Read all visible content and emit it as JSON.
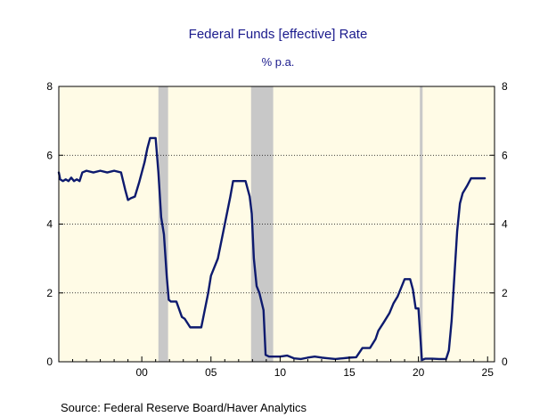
{
  "title": "Federal Funds [effective] Rate",
  "subtitle": "% p.a.",
  "source": "Source:  Federal Reserve Board/Haver Analytics",
  "colors": {
    "plot_background": "#fffbe6",
    "line": "#0d1a6e",
    "recession": "#c8c8c8",
    "title": "#1a1a8c"
  },
  "chart_data": {
    "type": "line",
    "title": "Federal Funds [effective] Rate",
    "subtitle": "% p.a.",
    "xlabel": "",
    "ylabel": "",
    "xlim": [
      1994,
      2025.5
    ],
    "ylim": [
      0,
      8
    ],
    "x_tick_labels": [
      "00",
      "05",
      "10",
      "15",
      "20",
      "25"
    ],
    "x_tick_values": [
      2000,
      2005,
      2010,
      2015,
      2020,
      2025
    ],
    "y_tick_labels": [
      "0",
      "2",
      "4",
      "6",
      "8"
    ],
    "y_tick_values": [
      0,
      2,
      4,
      6,
      8
    ],
    "grid": "horizontal dotted at 2, 4, 6",
    "recessions": [
      [
        2001.2,
        2001.9
      ],
      [
        2007.9,
        2009.5
      ],
      [
        2020.1,
        2020.3
      ]
    ],
    "series": [
      {
        "x": [
          1994.0,
          1994.1,
          1994.3,
          1994.5,
          1994.7,
          1994.9,
          1995.1,
          1995.3,
          1995.5,
          1995.7,
          1996.0,
          1996.5,
          1997.0,
          1997.5,
          1998.0,
          1998.5,
          1998.8,
          1999.0,
          1999.2,
          1999.5,
          1999.8,
          2000.0,
          2000.2,
          2000.4,
          2000.6,
          2000.9,
          2001.0,
          2001.2,
          2001.4,
          2001.6,
          2001.8,
          2001.95,
          2002.1,
          2002.5,
          2002.9,
          2003.1,
          2003.5,
          2003.9,
          2004.3,
          2004.5,
          2004.8,
          2005.0,
          2005.5,
          2006.0,
          2006.4,
          2006.6,
          2007.0,
          2007.5,
          2007.8,
          2007.95,
          2008.1,
          2008.3,
          2008.5,
          2008.8,
          2008.95,
          2009.2,
          2009.6,
          2010.0,
          2010.5,
          2011.0,
          2011.5,
          2012.0,
          2012.5,
          2013.0,
          2013.5,
          2014.0,
          2014.5,
          2015.0,
          2015.5,
          2015.95,
          2016.1,
          2016.5,
          2016.9,
          2017.1,
          2017.5,
          2017.9,
          2018.2,
          2018.5,
          2018.8,
          2019.0,
          2019.4,
          2019.6,
          2019.8,
          2020.0,
          2020.15,
          2020.25,
          2020.5,
          2021.0,
          2021.5,
          2022.0,
          2022.2,
          2022.4,
          2022.6,
          2022.8,
          2023.0,
          2023.2,
          2023.5,
          2023.8,
          2024.0,
          2024.3,
          2024.6,
          2024.8
        ],
        "y": [
          5.5,
          5.3,
          5.25,
          5.3,
          5.25,
          5.35,
          5.25,
          5.3,
          5.25,
          5.5,
          5.55,
          5.5,
          5.55,
          5.5,
          5.55,
          5.5,
          5.0,
          4.7,
          4.75,
          4.8,
          5.2,
          5.5,
          5.8,
          6.2,
          6.5,
          6.5,
          6.5,
          5.5,
          4.2,
          3.7,
          2.5,
          1.8,
          1.75,
          1.75,
          1.3,
          1.25,
          1.0,
          1.0,
          1.0,
          1.4,
          2.0,
          2.5,
          3.0,
          4.0,
          4.8,
          5.25,
          5.25,
          5.25,
          4.8,
          4.3,
          3.0,
          2.2,
          2.0,
          1.5,
          0.2,
          0.15,
          0.15,
          0.15,
          0.18,
          0.1,
          0.08,
          0.12,
          0.15,
          0.12,
          0.1,
          0.08,
          0.1,
          0.12,
          0.13,
          0.4,
          0.4,
          0.4,
          0.66,
          0.9,
          1.15,
          1.41,
          1.7,
          1.9,
          2.2,
          2.4,
          2.4,
          2.1,
          1.55,
          1.55,
          0.65,
          0.05,
          0.09,
          0.09,
          0.08,
          0.08,
          0.33,
          1.2,
          2.5,
          3.8,
          4.6,
          4.9,
          5.1,
          5.33,
          5.33,
          5.33,
          5.33,
          5.33
        ]
      }
    ]
  }
}
